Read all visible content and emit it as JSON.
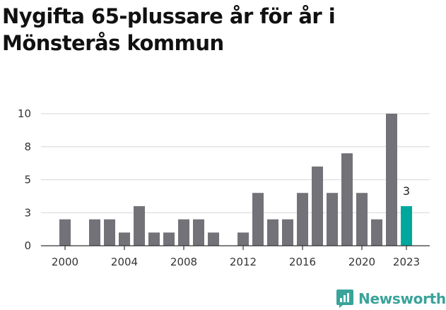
{
  "chart_data": {
    "type": "bar",
    "title": "Nygifta 65-plussare år för år i Mönsterås kommun",
    "xlabel": "",
    "ylabel": "",
    "x": [
      2000,
      2001,
      2002,
      2003,
      2004,
      2005,
      2006,
      2007,
      2008,
      2009,
      2010,
      2011,
      2012,
      2013,
      2014,
      2015,
      2016,
      2017,
      2018,
      2019,
      2020,
      2021,
      2022,
      2023
    ],
    "values": [
      2,
      0,
      2,
      2,
      1,
      3,
      1,
      1,
      2,
      2,
      1,
      0,
      1,
      4,
      2,
      2,
      4,
      6,
      4,
      7,
      4,
      2,
      10,
      3
    ],
    "ylim": [
      0,
      10
    ],
    "y_ticks": [
      "0",
      "3",
      "5",
      "8",
      "10"
    ],
    "y_tick_values": [
      0,
      2.5,
      5,
      7.5,
      10
    ],
    "x_ticks": [
      "2000",
      "2004",
      "2008",
      "2012",
      "2016",
      "2020",
      "2023"
    ],
    "x_tick_values": [
      2000,
      2004,
      2008,
      2012,
      2016,
      2020,
      2023
    ],
    "highlight": {
      "x": 2023,
      "label": "3"
    },
    "grid": true,
    "colors": {
      "bar": "#737278",
      "highlight": "#00a79d",
      "grid": "#dddddd",
      "axis": "#333333"
    }
  },
  "brand": {
    "name": "Newsworthy",
    "icon": "newsworthy-logo-icon",
    "color": "#3aa39a"
  }
}
